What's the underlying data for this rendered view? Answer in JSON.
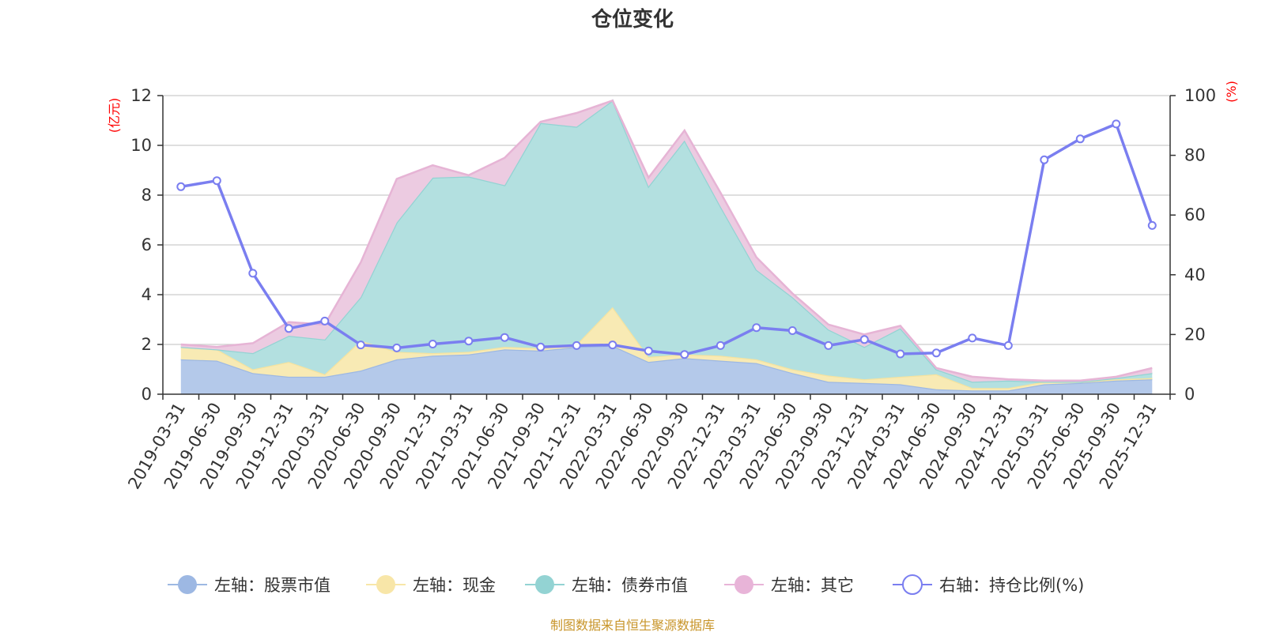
{
  "chart_data": {
    "type": "area",
    "title": "仓位变化",
    "left_axis": {
      "unit_label": "(亿元)",
      "ylim": [
        0,
        12
      ],
      "ticks": [
        0,
        2,
        4,
        6,
        8,
        10,
        12
      ]
    },
    "right_axis": {
      "unit_label": "(%)",
      "ylim": [
        0,
        100
      ],
      "ticks": [
        0,
        20,
        40,
        60,
        80,
        100
      ]
    },
    "categories": [
      "2019-03-31",
      "2019-06-30",
      "2019-09-30",
      "2019-12-31",
      "2020-03-31",
      "2020-06-30",
      "2020-09-30",
      "2020-12-31",
      "2021-03-31",
      "2021-06-30",
      "2021-09-30",
      "2021-12-31",
      "2022-03-31",
      "2022-06-30",
      "2022-09-30",
      "2022-12-31",
      "2023-03-31",
      "2023-06-30",
      "2023-09-30",
      "2023-12-31",
      "2024-03-31",
      "2024-06-30",
      "2024-09-30",
      "2024-12-31",
      "2025-03-31",
      "2025-06-30",
      "2025-09-30",
      "2025-12-31"
    ],
    "stacked_series": [
      {
        "name": "左轴：股票市值",
        "axis": "left",
        "color": "#9db8e3",
        "fill": "#b4c9ea",
        "values": [
          1.4,
          1.35,
          0.85,
          0.7,
          0.7,
          0.95,
          1.4,
          1.55,
          1.6,
          1.8,
          1.75,
          1.9,
          1.95,
          1.3,
          1.45,
          1.35,
          1.25,
          0.85,
          0.5,
          0.45,
          0.4,
          0.2,
          0.15,
          0.15,
          0.4,
          0.45,
          0.55,
          0.6
        ]
      },
      {
        "name": "左轴：现金",
        "axis": "left",
        "color": "#f5e3a0",
        "fill": "#f8eab4",
        "values": [
          0.5,
          0.45,
          0.15,
          0.6,
          0.1,
          1.2,
          0.3,
          0.1,
          0.1,
          0.1,
          0.1,
          0.1,
          1.55,
          0.2,
          0.15,
          0.2,
          0.15,
          0.15,
          0.25,
          0.15,
          0.3,
          0.6,
          0.1,
          0.1,
          0.1,
          0.05,
          0.05,
          0.05
        ]
      },
      {
        "name": "左轴：债券市值",
        "axis": "left",
        "color": "#93d3d3",
        "fill": "#b3e0e0",
        "values": [
          0.0,
          0.0,
          0.65,
          1.05,
          1.4,
          1.75,
          5.2,
          7.05,
          7.05,
          6.5,
          9.05,
          8.75,
          8.3,
          6.85,
          8.6,
          6.0,
          3.6,
          2.9,
          1.85,
          1.3,
          1.95,
          0.2,
          0.25,
          0.3,
          0.0,
          0.0,
          0.05,
          0.2
        ]
      },
      {
        "name": "左轴：其它",
        "axis": "left",
        "color": "#e6b4d5",
        "fill": "#eccbe1",
        "values": [
          0.1,
          0.1,
          0.4,
          0.55,
          0.6,
          1.4,
          1.75,
          0.5,
          0.05,
          1.1,
          0.05,
          0.55,
          0.0,
          0.35,
          0.4,
          0.55,
          0.5,
          0.15,
          0.2,
          0.5,
          0.1,
          0.05,
          0.2,
          0.05,
          0.05,
          0.05,
          0.05,
          0.2
        ]
      }
    ],
    "line_series": {
      "name": "右轴：持仓比例(%)",
      "axis": "right",
      "color": "#7a7ef0",
      "values": [
        69.5,
        71.5,
        40.5,
        22.0,
        24.5,
        16.5,
        15.5,
        16.8,
        17.8,
        19.0,
        15.8,
        16.3,
        16.5,
        14.5,
        13.3,
        16.3,
        22.3,
        21.3,
        16.3,
        18.3,
        13.5,
        13.8,
        18.8,
        16.3,
        78.5,
        85.5,
        90.5,
        56.5
      ]
    },
    "legend": [
      {
        "label": "左轴：股票市值",
        "marker": "circle-filled",
        "color": "#9db8e3"
      },
      {
        "label": "左轴：现金",
        "marker": "circle-filled",
        "color": "#f8e6a8"
      },
      {
        "label": "左轴：债券市值",
        "marker": "circle-filled",
        "color": "#93d3d3"
      },
      {
        "label": "左轴：其它",
        "marker": "circle-filled",
        "color": "#e8b4d8"
      },
      {
        "label": "右轴：持仓比例(%)",
        "marker": "circle-hollow",
        "color": "#7a7ef0"
      }
    ],
    "grid": true,
    "legend_position": "bottom-center"
  },
  "footer": {
    "source": "制图数据来自恒生聚源数据库"
  },
  "colors": {
    "axis_unit": "#ff0000",
    "gridline": "#cccccc",
    "axis": "#333333",
    "source_text": "#c8952a"
  }
}
